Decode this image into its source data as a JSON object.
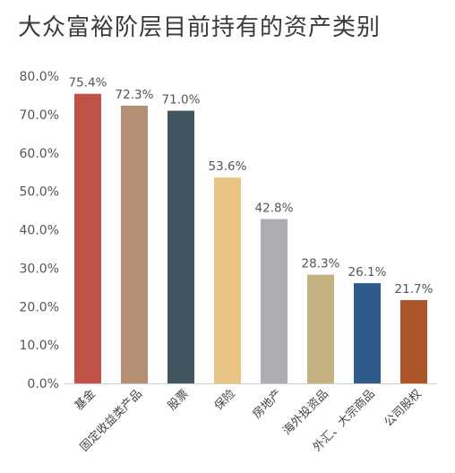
{
  "title": "大众富裕阶层目前持有的资产类别",
  "chart_data": {
    "type": "bar",
    "title": "大众富裕阶层目前持有的资产类别",
    "categories": [
      "基金",
      "固定收益类产品",
      "股票",
      "保险",
      "房地产",
      "海外投资品",
      "外汇、大宗商品",
      "公司股权"
    ],
    "values": [
      75.4,
      72.3,
      71.0,
      53.6,
      42.8,
      28.3,
      26.1,
      21.7
    ],
    "data_labels": [
      "75.4%",
      "72.3%",
      "71.0%",
      "53.6%",
      "42.8%",
      "28.3%",
      "26.1%",
      "21.7%"
    ],
    "colors": [
      "#c1524a",
      "#b58f74",
      "#435561",
      "#e9c585",
      "#aeadb1",
      "#c5b283",
      "#2f5a8c",
      "#ad5629"
    ],
    "y_ticks": [
      "0.0%",
      "10.0%",
      "20.0%",
      "30.0%",
      "40.0%",
      "50.0%",
      "60.0%",
      "70.0%",
      "80.0%"
    ],
    "ylim": [
      0,
      80
    ],
    "xlabel": "",
    "ylabel": "",
    "grid": false,
    "legend": "none"
  }
}
